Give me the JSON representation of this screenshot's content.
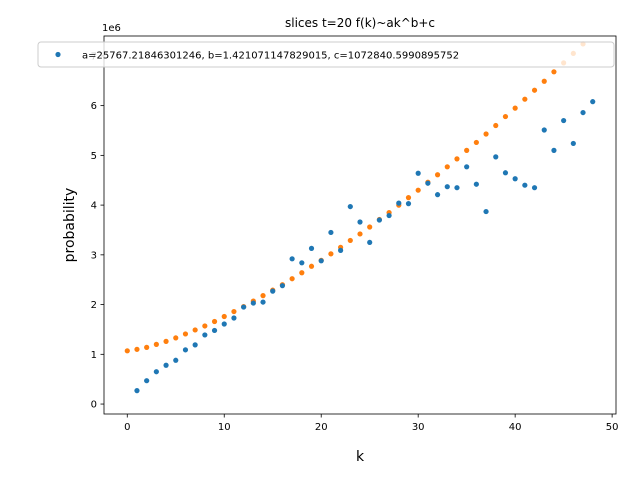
{
  "chart_data": {
    "type": "scatter",
    "title": "slices t=20 f(k)~ak^b+c",
    "xlabel": "k",
    "ylabel": "probability",
    "y_scale_offset_text": "1e6",
    "xlim": [
      -2.4,
      50.4
    ],
    "ylim": [
      -0.2,
      7.4
    ],
    "y_multiplier": 1000000,
    "xticks": [
      0,
      10,
      20,
      30,
      40,
      50
    ],
    "yticks": [
      0,
      1,
      2,
      3,
      4,
      5,
      6,
      7
    ],
    "grid": false,
    "legend_position": "top",
    "colors": {
      "data": "#1f77b4",
      "fit": "#ff7f0e"
    },
    "series": [
      {
        "name": "a=25767.21846301246, b=1.421071147829015, c=1072840.5990895752",
        "role": "data",
        "x": [
          1,
          2,
          3,
          4,
          5,
          6,
          7,
          8,
          9,
          10,
          11,
          12,
          13,
          14,
          15,
          16,
          17,
          18,
          19,
          20,
          21,
          22,
          23,
          24,
          25,
          26,
          27,
          28,
          29,
          30,
          31,
          32,
          33,
          34,
          35,
          36,
          37,
          38,
          39,
          40,
          41,
          42,
          43,
          44,
          45,
          46,
          47,
          48
        ],
        "y": [
          0.27,
          0.47,
          0.65,
          0.78,
          0.88,
          1.09,
          1.19,
          1.39,
          1.48,
          1.61,
          1.73,
          1.95,
          2.03,
          2.05,
          2.27,
          2.38,
          2.92,
          2.84,
          3.13,
          2.88,
          3.45,
          3.09,
          3.97,
          3.66,
          3.25,
          3.7,
          3.79,
          4.04,
          4.03,
          4.64,
          4.44,
          4.21,
          4.37,
          4.35,
          4.77,
          4.42,
          3.87,
          4.97,
          4.65,
          4.53,
          4.4,
          4.35,
          5.51,
          5.1,
          5.7,
          5.24,
          5.86,
          6.08
        ]
      },
      {
        "role": "fit",
        "x": [
          0,
          1,
          2,
          3,
          4,
          5,
          6,
          7,
          8,
          9,
          10,
          11,
          12,
          13,
          14,
          15,
          16,
          17,
          18,
          19,
          20,
          21,
          22,
          23,
          24,
          25,
          26,
          27,
          28,
          29,
          30,
          31,
          32,
          33,
          34,
          35,
          36,
          37,
          38,
          39,
          40,
          41,
          42,
          43,
          44,
          45,
          46,
          47,
          48
        ],
        "y": [
          1.07,
          1.1,
          1.14,
          1.2,
          1.26,
          1.33,
          1.41,
          1.49,
          1.57,
          1.66,
          1.76,
          1.86,
          1.96,
          2.07,
          2.18,
          2.29,
          2.4,
          2.52,
          2.64,
          2.77,
          2.89,
          3.02,
          3.15,
          3.29,
          3.42,
          3.56,
          3.71,
          3.85,
          4.0,
          4.15,
          4.3,
          4.46,
          4.61,
          4.77,
          4.93,
          5.1,
          5.26,
          5.43,
          5.6,
          5.78,
          5.95,
          6.13,
          6.31,
          6.49,
          6.68,
          6.86,
          7.05,
          7.24,
          7.43
        ]
      }
    ]
  }
}
